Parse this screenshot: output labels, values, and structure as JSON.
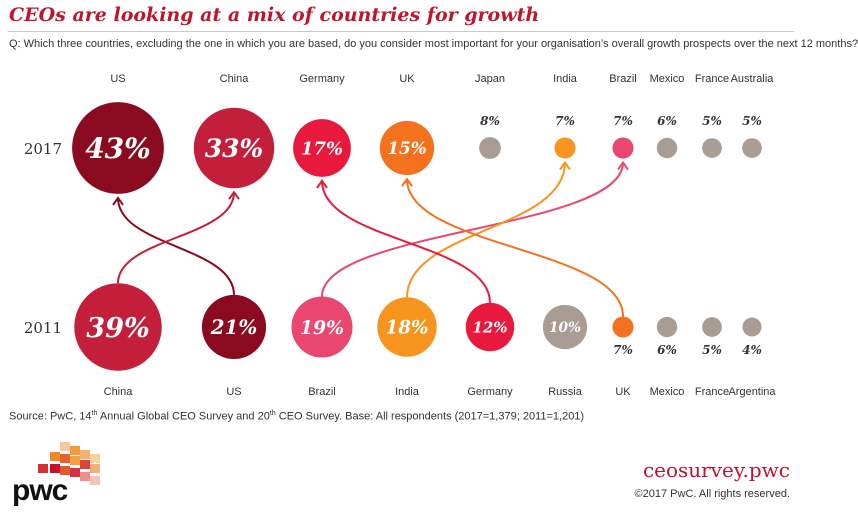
{
  "header": {
    "title": "CEOs are looking at a mix of countries for growth",
    "question": "Q: Which three countries, excluding the one in which you are based, do you consider most important for your organisation’s overall growth prospects over the next 12 months?"
  },
  "footer": {
    "source_pre": "Source: PwC, 14",
    "source_sup": "th",
    "source_post": " Annual Global CEO Survey and 20",
    "source_sup2": "th",
    "source_post2": " CEO Survey. Base: All respondents (2017=1,379; 2011=1,201)",
    "logo_text": "pwc",
    "site": "ceosurvey.pwc",
    "copyright": "©2017 PwC. All rights reserved."
  },
  "colors": {
    "dark_red": "#8a0b20",
    "red": "#c41f3a",
    "bright_red": "#e8193c",
    "orange": "#f4721e",
    "amber": "#f7941d",
    "pink": "#e94770",
    "grey": "#a89c93",
    "brand": "#c0142e"
  },
  "chart_data": {
    "type": "bubble-ranking",
    "title": "CEOs are looking at a mix of countries for growth",
    "rows": [
      {
        "year": "2017",
        "countries": [
          {
            "name": "US",
            "value": 43,
            "label": "43%",
            "color": "#8a0b20"
          },
          {
            "name": "China",
            "value": 33,
            "label": "33%",
            "color": "#c41f3a"
          },
          {
            "name": "Germany",
            "value": 17,
            "label": "17%",
            "color": "#e8193c"
          },
          {
            "name": "UK",
            "value": 15,
            "label": "15%",
            "color": "#f4721e"
          },
          {
            "name": "Japan",
            "value": 8,
            "label": "8%",
            "color": "#a89c93"
          },
          {
            "name": "India",
            "value": 7,
            "label": "7%",
            "color": "#f7941d"
          },
          {
            "name": "Brazil",
            "value": 7,
            "label": "7%",
            "color": "#e94770"
          },
          {
            "name": "Mexico",
            "value": 6,
            "label": "6%",
            "color": "#a89c93"
          },
          {
            "name": "France",
            "value": 5,
            "label": "5%",
            "color": "#a89c93"
          },
          {
            "name": "Australia",
            "value": 5,
            "label": "5%",
            "color": "#a89c93"
          }
        ]
      },
      {
        "year": "2011",
        "countries": [
          {
            "name": "China",
            "value": 39,
            "label": "39%",
            "color": "#c41f3a"
          },
          {
            "name": "US",
            "value": 21,
            "label": "21%",
            "color": "#8a0b20"
          },
          {
            "name": "Brazil",
            "value": 19,
            "label": "19%",
            "color": "#e94770"
          },
          {
            "name": "India",
            "value": 18,
            "label": "18%",
            "color": "#f7941d"
          },
          {
            "name": "Germany",
            "value": 12,
            "label": "12%",
            "color": "#e8193c"
          },
          {
            "name": "Russia",
            "value": 10,
            "label": "10%",
            "color": "#a89c93"
          },
          {
            "name": "UK",
            "value": 7,
            "label": "7%",
            "color": "#f4721e"
          },
          {
            "name": "Mexico",
            "value": 6,
            "label": "6%",
            "color": "#a89c93"
          },
          {
            "name": "France",
            "value": 5,
            "label": "5%",
            "color": "#a89c93"
          },
          {
            "name": "Argentina",
            "value": 4,
            "label": "4%",
            "color": "#a89c93"
          }
        ]
      }
    ],
    "links": [
      {
        "country": "US",
        "from_2011_rank": 2,
        "to_2017_rank": 1
      },
      {
        "country": "China",
        "from_2011_rank": 1,
        "to_2017_rank": 2
      },
      {
        "country": "Brazil",
        "from_2011_rank": 3,
        "to_2017_rank": 7
      },
      {
        "country": "India",
        "from_2011_rank": 4,
        "to_2017_rank": 6
      },
      {
        "country": "Germany",
        "from_2011_rank": 5,
        "to_2017_rank": 3
      },
      {
        "country": "UK",
        "from_2011_rank": 7,
        "to_2017_rank": 4
      }
    ]
  }
}
